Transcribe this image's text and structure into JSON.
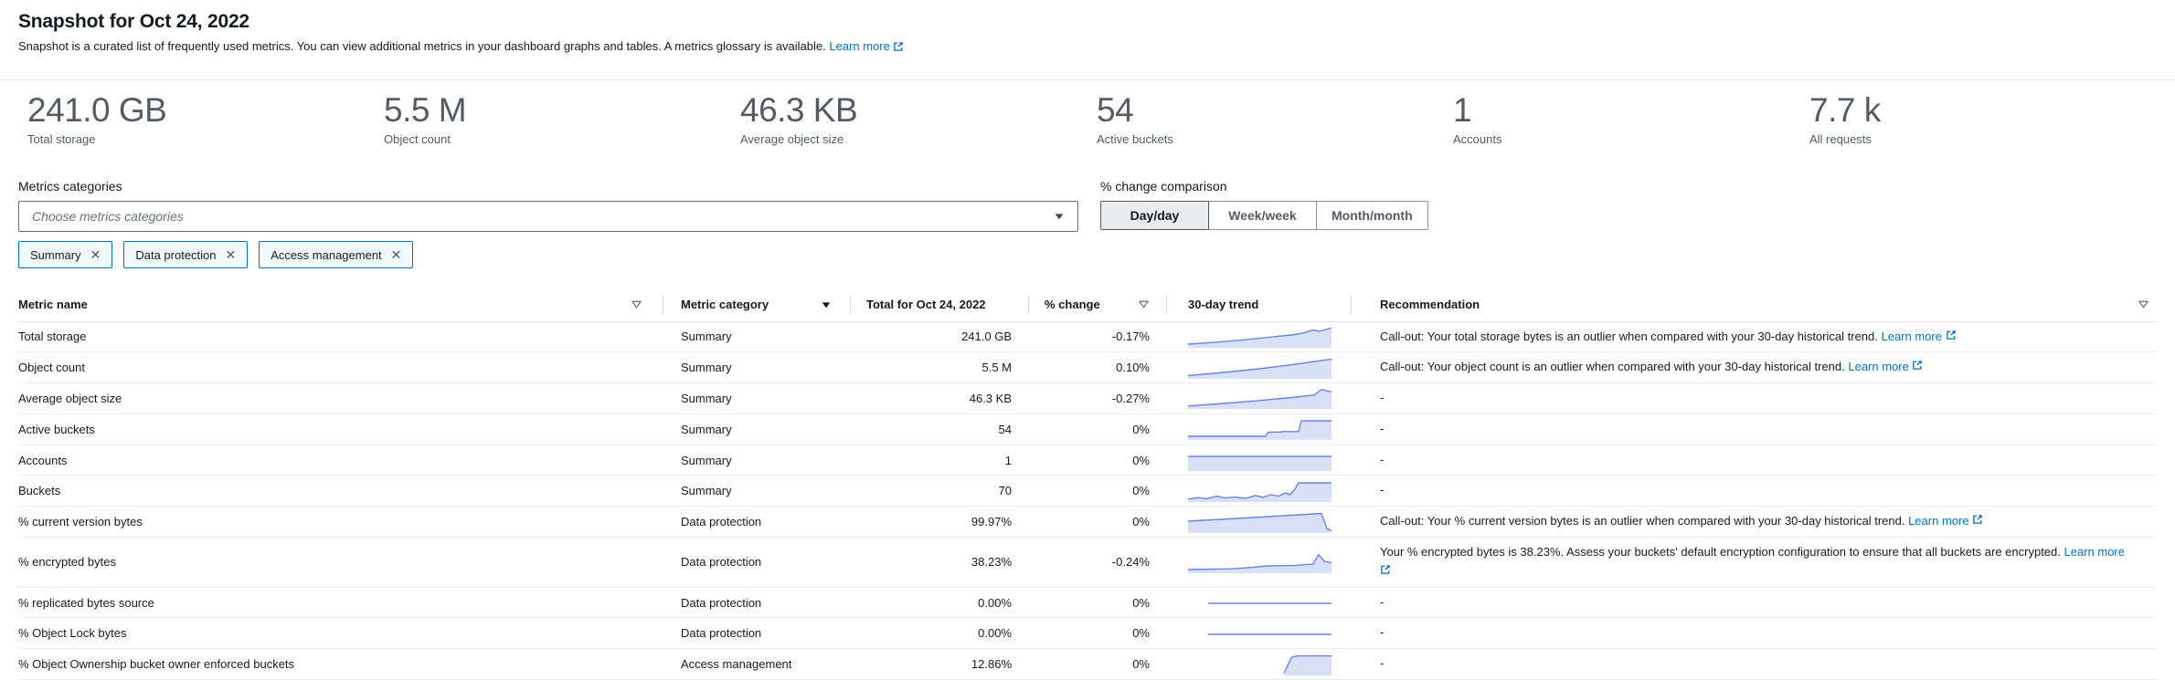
{
  "page": {
    "title": "Snapshot for Oct 24, 2022",
    "subtitle": "Snapshot is a curated list of frequently used metrics. You can view additional metrics in your dashboard graphs and tables. A metrics glossary is available.",
    "subtitle_link": "Learn more"
  },
  "summary_cards": [
    {
      "value": "241.0 GB",
      "label": "Total storage"
    },
    {
      "value": "5.5 M",
      "label": "Object count"
    },
    {
      "value": "46.3 KB",
      "label": "Average object size"
    },
    {
      "value": "54",
      "label": "Active buckets"
    },
    {
      "value": "1",
      "label": "Accounts"
    },
    {
      "value": "7.7 k",
      "label": "All requests"
    }
  ],
  "filters": {
    "categories_label": "Metrics categories",
    "categories_placeholder": "Choose metrics categories",
    "selected_categories": [
      "Summary",
      "Data protection",
      "Access management"
    ],
    "comparison_label": "% change comparison",
    "comparison_options": [
      {
        "label": "Day/day",
        "selected": true
      },
      {
        "label": "Week/week",
        "selected": false
      },
      {
        "label": "Month/month",
        "selected": false
      }
    ]
  },
  "table": {
    "columns": [
      {
        "key": "name",
        "label": "Metric name",
        "icon": "filter"
      },
      {
        "key": "category",
        "label": "Metric category",
        "icon": "caret"
      },
      {
        "key": "total",
        "label": "Total for Oct 24, 2022",
        "icon": null
      },
      {
        "key": "change",
        "label": "% change",
        "icon": "filter"
      },
      {
        "key": "trend",
        "label": "30-day trend",
        "icon": null
      },
      {
        "key": "recommendation",
        "label": "Recommendation",
        "icon": "filter"
      }
    ],
    "rows": [
      {
        "name": "Total storage",
        "category": "Summary",
        "total": "241.0 GB",
        "change": "-0.17%",
        "trend": [
          [
            0,
            0.1
          ],
          [
            0.12,
            0.16
          ],
          [
            0.25,
            0.24
          ],
          [
            0.38,
            0.33
          ],
          [
            0.5,
            0.42
          ],
          [
            0.62,
            0.52
          ],
          [
            0.72,
            0.6
          ],
          [
            0.8,
            0.7
          ],
          [
            0.85,
            0.82
          ],
          [
            0.88,
            0.88
          ],
          [
            0.91,
            0.8
          ],
          [
            0.96,
            0.9
          ],
          [
            1,
            0.98
          ]
        ],
        "trend_fill": true,
        "recommendation": "Call-out: Your total storage bytes is an outlier when compared with your 30-day historical trend.",
        "rec_link": "Learn more"
      },
      {
        "name": "Object count",
        "category": "Summary",
        "total": "5.5 M",
        "change": "0.10%",
        "trend": [
          [
            0,
            0.08
          ],
          [
            0.25,
            0.25
          ],
          [
            0.5,
            0.45
          ],
          [
            0.75,
            0.7
          ],
          [
            1,
            0.98
          ]
        ],
        "trend_fill": true,
        "recommendation": "Call-out: Your object count is an outlier when compared with your 30-day historical trend.",
        "rec_link": "Learn more"
      },
      {
        "name": "Average object size",
        "category": "Summary",
        "total": "46.3 KB",
        "change": "-0.27%",
        "trend": [
          [
            0,
            0.06
          ],
          [
            0.25,
            0.2
          ],
          [
            0.5,
            0.36
          ],
          [
            0.75,
            0.55
          ],
          [
            0.88,
            0.66
          ],
          [
            0.93,
            0.97
          ],
          [
            0.97,
            0.88
          ],
          [
            1,
            0.84
          ]
        ],
        "trend_fill": true,
        "recommendation": "-",
        "rec_link": null
      },
      {
        "name": "Active buckets",
        "category": "Summary",
        "total": "54",
        "change": "0%",
        "trend": [
          [
            0,
            0.1
          ],
          [
            0.54,
            0.1
          ],
          [
            0.56,
            0.33
          ],
          [
            0.64,
            0.33
          ],
          [
            0.66,
            0.36
          ],
          [
            0.77,
            0.36
          ],
          [
            0.79,
            0.95
          ],
          [
            1,
            0.95
          ]
        ],
        "trend_fill": true,
        "recommendation": "-",
        "rec_link": null
      },
      {
        "name": "Accounts",
        "category": "Summary",
        "total": "1",
        "change": "0%",
        "trend": [
          [
            0,
            0.7
          ],
          [
            1,
            0.7
          ]
        ],
        "trend_fill": true,
        "recommendation": "-",
        "rec_link": null
      },
      {
        "name": "Buckets",
        "category": "Summary",
        "total": "70",
        "change": "0%",
        "trend": [
          [
            0,
            0.06
          ],
          [
            0.07,
            0.14
          ],
          [
            0.13,
            0.08
          ],
          [
            0.2,
            0.22
          ],
          [
            0.26,
            0.12
          ],
          [
            0.33,
            0.18
          ],
          [
            0.4,
            0.1
          ],
          [
            0.47,
            0.26
          ],
          [
            0.52,
            0.16
          ],
          [
            0.58,
            0.3
          ],
          [
            0.63,
            0.22
          ],
          [
            0.68,
            0.4
          ],
          [
            0.71,
            0.3
          ],
          [
            0.74,
            0.55
          ],
          [
            0.77,
            0.95
          ],
          [
            1,
            0.95
          ]
        ],
        "trend_fill": true,
        "recommendation": "-",
        "rec_link": null
      },
      {
        "name": "% current version bytes",
        "category": "Data protection",
        "total": "99.97%",
        "change": "0%",
        "trend": [
          [
            0,
            0.55
          ],
          [
            0.45,
            0.75
          ],
          [
            0.88,
            0.95
          ],
          [
            0.93,
            0.97
          ],
          [
            0.97,
            0.12
          ],
          [
            1,
            0.06
          ]
        ],
        "trend_fill": true,
        "recommendation": "Call-out: Your % current version bytes is an outlier when compared with your 30-day historical trend.",
        "rec_link": "Learn more"
      },
      {
        "name": "% encrypted bytes",
        "category": "Data protection",
        "total": "38.23%",
        "change": "-0.24%",
        "trend": [
          [
            0,
            0.1
          ],
          [
            0.3,
            0.14
          ],
          [
            0.45,
            0.22
          ],
          [
            0.55,
            0.3
          ],
          [
            0.75,
            0.33
          ],
          [
            0.87,
            0.4
          ],
          [
            0.91,
            0.92
          ],
          [
            0.95,
            0.55
          ],
          [
            1,
            0.48
          ]
        ],
        "trend_fill": true,
        "recommendation": "Your % encrypted bytes is 38.23%. Assess your buckets' default encryption configuration to ensure that all buckets are encrypted.",
        "rec_link": "Learn more"
      },
      {
        "name": "% replicated bytes source",
        "category": "Data protection",
        "total": "0.00%",
        "change": "0%",
        "trend": [
          [
            0.14,
            0.45
          ],
          [
            1,
            0.45
          ]
        ],
        "trend_fill": false,
        "recommendation": "-",
        "rec_link": null
      },
      {
        "name": "% Object Lock bytes",
        "category": "Data protection",
        "total": "0.00%",
        "change": "0%",
        "trend": [
          [
            0.14,
            0.45
          ],
          [
            1,
            0.45
          ]
        ],
        "trend_fill": false,
        "recommendation": "-",
        "rec_link": null
      },
      {
        "name": "% Object Ownership bucket owner enforced buckets",
        "category": "Access management",
        "total": "12.86%",
        "change": "0%",
        "trend": [
          [
            0.67,
            0.04
          ],
          [
            0.72,
            0.88
          ],
          [
            0.76,
            0.97
          ],
          [
            1,
            0.97
          ]
        ],
        "trend_fill": true,
        "recommendation": "-",
        "rec_link": null
      }
    ]
  },
  "colors": {
    "link": "#0073bb",
    "trend_line": "#6b84e0",
    "trend_fill": "#d8e0f7",
    "icon_gray": "#687078",
    "icon_dark": "#16191f"
  }
}
